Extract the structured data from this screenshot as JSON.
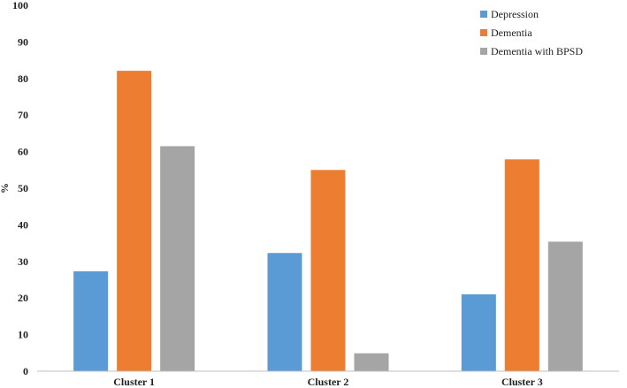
{
  "chart_data": {
    "type": "bar",
    "title": "",
    "xlabel": "",
    "ylabel": "%",
    "ylim": [
      0,
      100
    ],
    "yticks": [
      "0",
      "10",
      "20",
      "30",
      "40",
      "50",
      "60",
      "70",
      "80",
      "90",
      "100"
    ],
    "categories": [
      "Cluster 1",
      "Cluster 2",
      "Cluster 3"
    ],
    "series": [
      {
        "name": "Depression",
        "color": "#5b9bd5",
        "values": [
          27.3,
          32.3,
          21.0
        ]
      },
      {
        "name": "Dementia",
        "color": "#ed7d31",
        "values": [
          82.1,
          55.0,
          57.9
        ]
      },
      {
        "name": "Dementia with BPSD",
        "color": "#a5a5a5",
        "values": [
          61.5,
          4.9,
          35.4
        ]
      }
    ],
    "grid": false,
    "legend_position": "top-right"
  }
}
